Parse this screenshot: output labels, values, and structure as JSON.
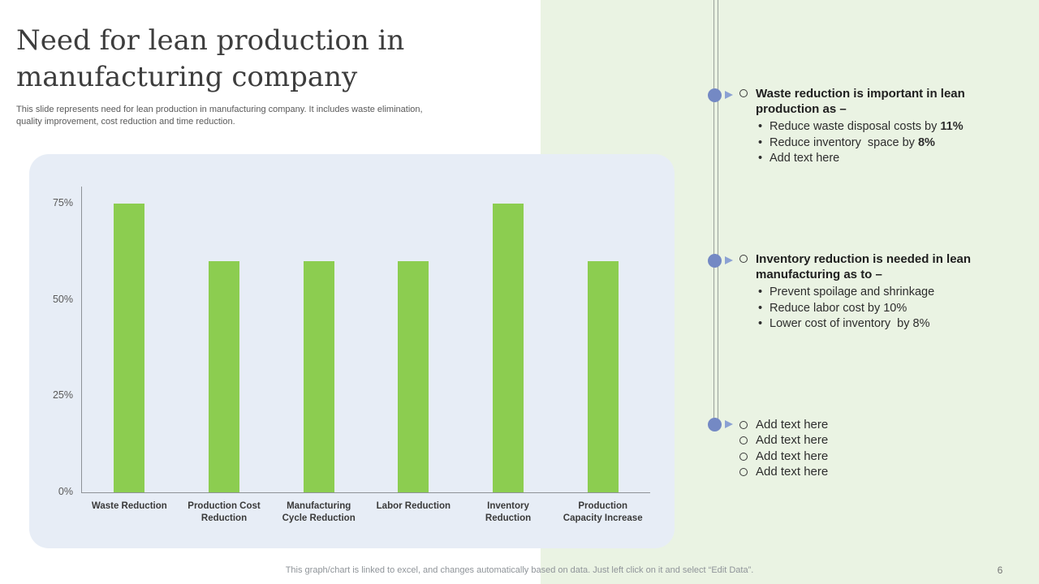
{
  "slide": {
    "title": "Need for lean production in manufacturing company",
    "subtitle": "This slide represents need for lean production in manufacturing company. It includes waste elimination, quality improvement, cost reduction and time reduction.",
    "footer": "This graph/chart is linked to excel,  and changes automatically based on data. Just left click on it and select “Edit Data”.",
    "page_number": "6"
  },
  "chart_data": {
    "type": "bar",
    "title": "",
    "xlabel": "",
    "ylabel": "",
    "categories": [
      "Waste Reduction",
      "Production Cost\nReduction",
      "Manufacturing\nCycle Reduction",
      "Labor Reduction",
      "Inventory\nReduction",
      "Production\nCapacity Increase"
    ],
    "values": [
      75,
      60,
      60,
      60,
      75,
      60
    ],
    "unit": "%",
    "y_ticks": [
      0,
      25,
      50,
      75
    ],
    "y_tick_labels": [
      "0%",
      "25%",
      "50%",
      "75%"
    ],
    "ylim": [
      0,
      79
    ],
    "grid": false,
    "legend": "none",
    "bar_color": "#8ccd50",
    "panel_color": "#e7edf6"
  },
  "right_panel": {
    "background_color": "#eaf3e3",
    "marker_color": "#7489c4",
    "blocks": [
      {
        "heading": "Waste reduction is important in lean production as –",
        "bullets": [
          {
            "text": "Reduce waste disposal costs by ",
            "bold": "11%"
          },
          {
            "text": "Reduce inventory  space by ",
            "bold": "8%"
          },
          {
            "text": "Add text here",
            "bold": ""
          }
        ]
      },
      {
        "heading": "Inventory reduction is needed in lean manufacturing as to –",
        "bullets": [
          {
            "text": "Prevent spoilage and shrinkage",
            "bold": ""
          },
          {
            "text": "Reduce labor cost by 10%",
            "bold": ""
          },
          {
            "text": "Lower cost of inventory  by 8%",
            "bold": ""
          }
        ]
      },
      {
        "items": [
          "Add text here",
          "Add text here",
          "Add text here",
          "Add text here"
        ]
      }
    ]
  }
}
